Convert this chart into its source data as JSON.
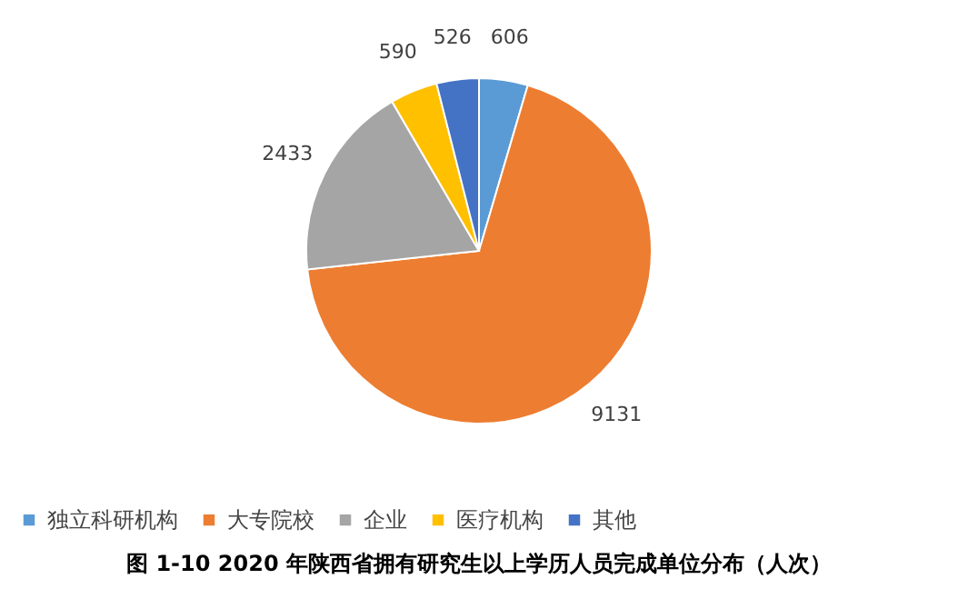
{
  "chart_data": {
    "type": "pie",
    "title": "图 1-10  2020 年陕西省拥有研究生以上学历人员完成单位分布（人次）",
    "categories": [
      "独立科研机构",
      "大专院校",
      "企业",
      "医疗机构",
      "其他"
    ],
    "values": [
      606,
      9131,
      2433,
      590,
      526
    ],
    "colors": [
      "#5b9bd5",
      "#ed7d31",
      "#a5a5a5",
      "#ffc000",
      "#4472c4"
    ],
    "data_labels": true,
    "legend": "bottom"
  }
}
